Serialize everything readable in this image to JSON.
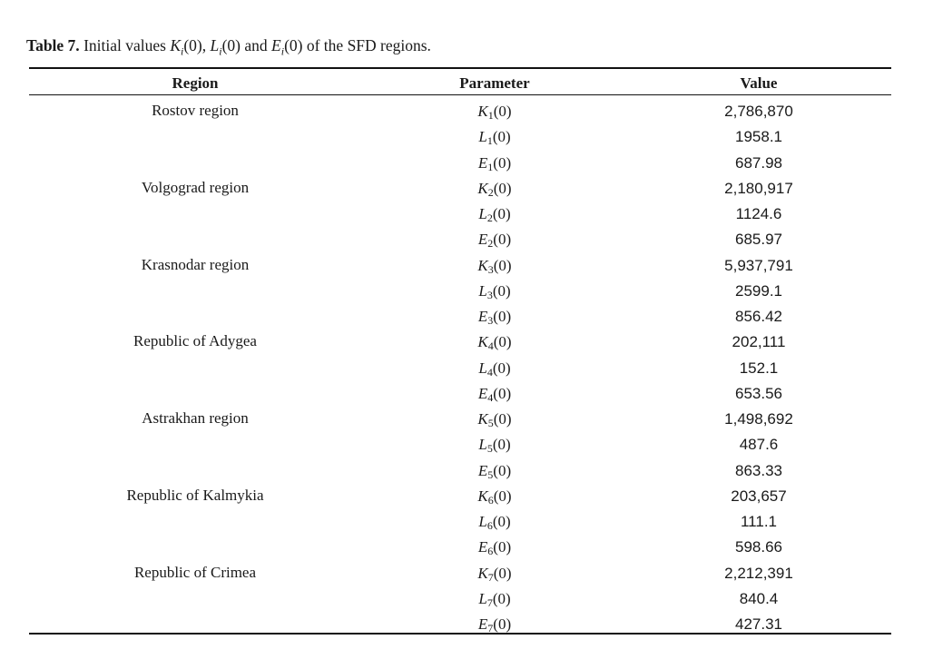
{
  "caption": {
    "label": "Table 7.",
    "text_pre": " Initial values ",
    "k": "K",
    "l": "L",
    "e": "E",
    "sub": "i",
    "arg": "(0)",
    "sep1": ", ",
    "sep2": " and ",
    "text_post": " of the SFD regions."
  },
  "table": {
    "headers": {
      "region": "Region",
      "parameter": "Parameter",
      "value": "Value"
    },
    "groups": [
      {
        "region": "Rostov region",
        "rows": [
          {
            "sym": "K",
            "sub": "1",
            "arg": "(0)",
            "value": "2,786,870"
          },
          {
            "sym": "L",
            "sub": "1",
            "arg": "(0)",
            "value": "1958.1"
          },
          {
            "sym": "E",
            "sub": "1",
            "arg": "(0)",
            "value": "687.98"
          }
        ]
      },
      {
        "region": "Volgograd region",
        "rows": [
          {
            "sym": "K",
            "sub": "2",
            "arg": "(0)",
            "value": "2,180,917"
          },
          {
            "sym": "L",
            "sub": "2",
            "arg": "(0)",
            "value": "1124.6"
          },
          {
            "sym": "E",
            "sub": "2",
            "arg": "(0)",
            "value": "685.97"
          }
        ]
      },
      {
        "region": "Krasnodar region",
        "rows": [
          {
            "sym": "K",
            "sub": "3",
            "arg": "(0)",
            "value": "5,937,791"
          },
          {
            "sym": "L",
            "sub": "3",
            "arg": "(0)",
            "value": "2599.1"
          },
          {
            "sym": "E",
            "sub": "3",
            "arg": "(0)",
            "value": "856.42"
          }
        ]
      },
      {
        "region": "Republic of Adygea",
        "rows": [
          {
            "sym": "K",
            "sub": "4",
            "arg": "(0)",
            "value": "202,111"
          },
          {
            "sym": "L",
            "sub": "4",
            "arg": "(0)",
            "value": "152.1"
          },
          {
            "sym": "E",
            "sub": "4",
            "arg": "(0)",
            "value": "653.56"
          }
        ]
      },
      {
        "region": "Astrakhan region",
        "rows": [
          {
            "sym": "K",
            "sub": "5",
            "arg": "(0)",
            "value": "1,498,692"
          },
          {
            "sym": "L",
            "sub": "5",
            "arg": "(0)",
            "value": "487.6"
          },
          {
            "sym": "E",
            "sub": "5",
            "arg": "(0)",
            "value": "863.33"
          }
        ]
      },
      {
        "region": "Republic of Kalmykia",
        "rows": [
          {
            "sym": "K",
            "sub": "6",
            "arg": "(0)",
            "value": "203,657"
          },
          {
            "sym": "L",
            "sub": "6",
            "arg": "(0)",
            "value": "111.1"
          },
          {
            "sym": "E",
            "sub": "6",
            "arg": "(0)",
            "value": "598.66"
          }
        ]
      },
      {
        "region": "Republic of Crimea",
        "rows": [
          {
            "sym": "K",
            "sub": "7",
            "arg": "(0)",
            "value": "2,212,391"
          },
          {
            "sym": "L",
            "sub": "7",
            "arg": "(0)",
            "value": "840.4"
          },
          {
            "sym": "E",
            "sub": "7",
            "arg": "(0)",
            "value": "427.31"
          }
        ]
      }
    ]
  }
}
